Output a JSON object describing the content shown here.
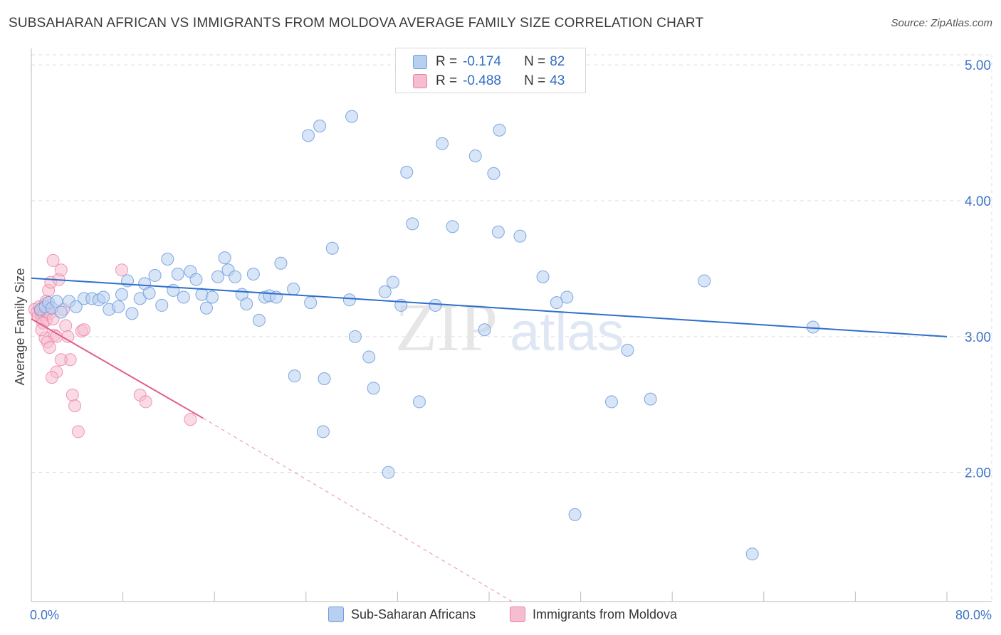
{
  "header": {
    "title": "SUBSAHARAN AFRICAN VS IMMIGRANTS FROM MOLDOVA AVERAGE FAMILY SIZE CORRELATION CHART",
    "source": "Source: ZipAtlas.com"
  },
  "watermark": {
    "zip": "ZIP",
    "atlas": "atlas"
  },
  "legend": {
    "rows": [
      {
        "r_label": "R = ",
        "r_value": "-0.174",
        "n_label": "N = ",
        "n_value": "82"
      },
      {
        "r_label": "R = ",
        "r_value": "-0.488",
        "n_label": "N = ",
        "n_value": "43"
      }
    ]
  },
  "bottom_legend": {
    "series1": "Sub-Saharan Africans",
    "series2": "Immigrants from Moldova"
  },
  "colors": {
    "blue_fill": "#b8d0f0",
    "blue_stroke": "#6f9ee0",
    "blue_line": "#2f6fcc",
    "pink_fill": "#f6bdd0",
    "pink_stroke": "#ec7fa3",
    "pink_line": "#e0608e",
    "tick_label": "#3d74c6",
    "grid": "#dddddd"
  },
  "chart_data": {
    "type": "scatter",
    "title": "SUBSAHARAN AFRICAN VS IMMIGRANTS FROM MOLDOVA AVERAGE FAMILY SIZE CORRELATION CHART",
    "xlabel": "",
    "ylabel": "Average Family Size",
    "x_tick_labels": [
      "0.0%",
      "80.0%"
    ],
    "y_tick_labels": [
      "2.00",
      "3.00",
      "4.00",
      "5.00"
    ],
    "y_ticks": [
      2.0,
      3.0,
      4.0,
      5.0
    ],
    "xlim": [
      0,
      80
    ],
    "ylim": [
      1.05,
      5.1
    ],
    "grid": true,
    "legend_position": "top-center",
    "series": [
      {
        "name": "Sub-Saharan Africans",
        "r": -0.174,
        "n": 82,
        "trend": {
          "x": [
            0,
            80
          ],
          "y": [
            3.43,
            3.0
          ]
        },
        "points": [
          [
            0.8,
            3.2
          ],
          [
            1.2,
            3.22
          ],
          [
            1.5,
            3.25
          ],
          [
            1.8,
            3.21
          ],
          [
            2.2,
            3.26
          ],
          [
            2.6,
            3.18
          ],
          [
            3.3,
            3.26
          ],
          [
            3.9,
            3.22
          ],
          [
            4.6,
            3.28
          ],
          [
            5.3,
            3.28
          ],
          [
            5.9,
            3.27
          ],
          [
            6.3,
            3.29
          ],
          [
            6.8,
            3.2
          ],
          [
            7.6,
            3.22
          ],
          [
            7.9,
            3.31
          ],
          [
            8.4,
            3.41
          ],
          [
            8.8,
            3.17
          ],
          [
            9.5,
            3.28
          ],
          [
            9.9,
            3.39
          ],
          [
            10.3,
            3.32
          ],
          [
            10.8,
            3.45
          ],
          [
            11.4,
            3.23
          ],
          [
            11.9,
            3.57
          ],
          [
            12.4,
            3.34
          ],
          [
            12.8,
            3.46
          ],
          [
            13.3,
            3.29
          ],
          [
            13.9,
            3.48
          ],
          [
            14.4,
            3.42
          ],
          [
            14.9,
            3.31
          ],
          [
            15.3,
            3.21
          ],
          [
            15.8,
            3.29
          ],
          [
            16.3,
            3.44
          ],
          [
            16.9,
            3.58
          ],
          [
            17.2,
            3.49
          ],
          [
            17.8,
            3.44
          ],
          [
            18.4,
            3.31
          ],
          [
            18.8,
            3.24
          ],
          [
            19.4,
            3.46
          ],
          [
            19.9,
            3.12
          ],
          [
            20.4,
            3.29
          ],
          [
            20.8,
            3.3
          ],
          [
            21.4,
            3.29
          ],
          [
            21.8,
            3.54
          ],
          [
            22.9,
            3.35
          ],
          [
            24.4,
            3.25
          ],
          [
            26.3,
            3.65
          ],
          [
            27.8,
            3.27
          ],
          [
            28.3,
            3.0
          ],
          [
            29.5,
            2.85
          ],
          [
            29.9,
            2.62
          ],
          [
            30.9,
            3.33
          ],
          [
            31.6,
            3.4
          ],
          [
            32.3,
            3.23
          ],
          [
            32.8,
            4.21
          ],
          [
            33.3,
            3.83
          ],
          [
            33.9,
            2.52
          ],
          [
            35.3,
            3.23
          ],
          [
            35.9,
            4.42
          ],
          [
            39.6,
            3.05
          ],
          [
            38.8,
            4.33
          ],
          [
            40.8,
            3.77
          ],
          [
            40.4,
            4.2
          ],
          [
            40.9,
            4.52
          ],
          [
            42.7,
            3.74
          ],
          [
            44.7,
            3.44
          ],
          [
            46.8,
            3.29
          ],
          [
            50.7,
            2.52
          ],
          [
            52.1,
            2.9
          ],
          [
            54.1,
            2.54
          ],
          [
            58.8,
            3.41
          ],
          [
            68.3,
            3.07
          ],
          [
            24.2,
            4.48
          ],
          [
            25.2,
            4.55
          ],
          [
            28.0,
            4.62
          ],
          [
            23.0,
            2.71
          ],
          [
            25.6,
            2.69
          ],
          [
            25.5,
            2.3
          ],
          [
            31.2,
            2.0
          ],
          [
            47.5,
            1.69
          ],
          [
            63.0,
            1.4
          ],
          [
            45.9,
            3.25
          ],
          [
            36.8,
            3.81
          ]
        ]
      },
      {
        "name": "Immigrants from Moldova",
        "r": -0.488,
        "n": 43,
        "trend": {
          "x": [
            0,
            15
          ],
          "y": [
            3.13,
            2.4
          ]
        },
        "trend_dashed": {
          "x": [
            15,
            42
          ],
          "y": [
            2.4,
            1.05
          ]
        },
        "points": [
          [
            0.3,
            3.2
          ],
          [
            0.5,
            3.18
          ],
          [
            0.6,
            3.15
          ],
          [
            0.7,
            3.22
          ],
          [
            0.8,
            3.19
          ],
          [
            0.9,
            3.14
          ],
          [
            1.0,
            3.21
          ],
          [
            1.1,
            3.16
          ],
          [
            1.2,
            3.24
          ],
          [
            1.3,
            3.12
          ],
          [
            1.4,
            3.18
          ],
          [
            1.5,
            3.2
          ],
          [
            1.6,
            3.17
          ],
          [
            1.0,
            3.1
          ],
          [
            1.2,
            2.99
          ],
          [
            1.5,
            3.34
          ],
          [
            1.7,
            3.4
          ],
          [
            1.9,
            3.56
          ],
          [
            2.0,
            3.01
          ],
          [
            2.2,
            3.0
          ],
          [
            1.4,
            2.96
          ],
          [
            1.6,
            2.92
          ],
          [
            2.4,
            3.42
          ],
          [
            2.6,
            3.49
          ],
          [
            2.8,
            3.2
          ],
          [
            3.0,
            3.08
          ],
          [
            3.2,
            3.0
          ],
          [
            3.4,
            2.83
          ],
          [
            3.6,
            2.57
          ],
          [
            3.8,
            2.49
          ],
          [
            4.1,
            2.3
          ],
          [
            2.6,
            2.83
          ],
          [
            2.2,
            2.74
          ],
          [
            1.8,
            2.7
          ],
          [
            4.4,
            3.04
          ],
          [
            4.6,
            3.05
          ],
          [
            7.9,
            3.49
          ],
          [
            9.5,
            2.57
          ],
          [
            10.0,
            2.52
          ],
          [
            13.9,
            2.39
          ],
          [
            0.9,
            3.05
          ],
          [
            1.3,
            3.26
          ],
          [
            1.9,
            3.13
          ]
        ]
      }
    ]
  }
}
